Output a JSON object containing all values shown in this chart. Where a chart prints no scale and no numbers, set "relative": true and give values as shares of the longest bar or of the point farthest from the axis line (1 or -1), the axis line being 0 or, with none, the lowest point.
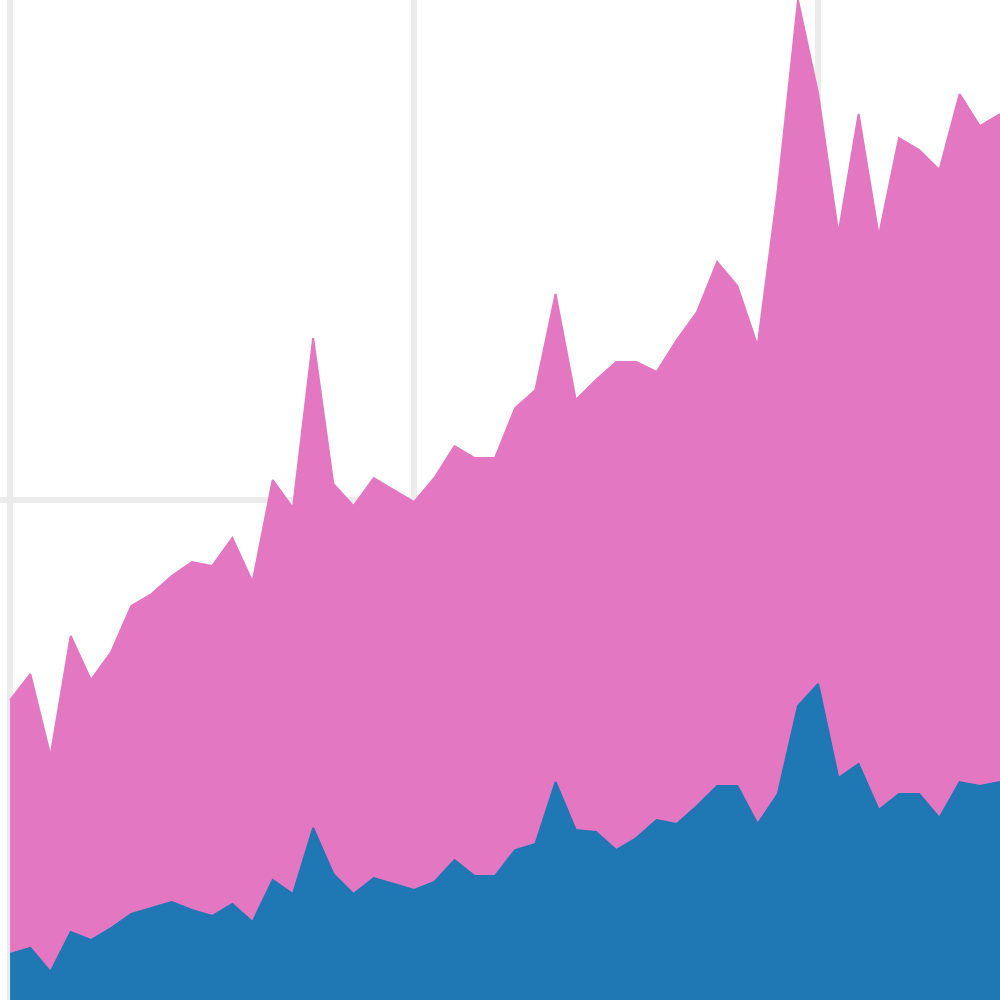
{
  "chart_data": {
    "type": "area",
    "relative": true,
    "stacked": true,
    "grid": true,
    "categories": [
      null,
      null,
      null,
      null,
      null,
      null,
      null,
      null,
      null,
      null,
      null,
      null,
      null,
      null,
      null,
      null,
      null,
      null,
      null,
      null,
      null,
      null,
      null,
      null,
      null,
      null,
      null,
      null,
      null,
      null,
      null,
      null,
      null,
      null,
      null,
      null,
      null,
      null,
      null,
      null,
      null,
      null,
      null,
      null,
      null,
      null,
      null,
      null,
      null,
      null
    ],
    "series": [
      {
        "color": "#1f77b4",
        "values": [
          0.046,
          0.052,
          0.028,
          0.068,
          0.06,
          0.072,
          0.086,
          0.092,
          0.098,
          0.09,
          0.084,
          0.096,
          0.078,
          0.12,
          0.106,
          0.172,
          0.126,
          0.106,
          0.122,
          0.116,
          0.11,
          0.118,
          0.14,
          0.124,
          0.124,
          0.15,
          0.156,
          0.218,
          0.17,
          0.168,
          0.15,
          0.162,
          0.18,
          0.176,
          0.194,
          0.214,
          0.214,
          0.176,
          0.206,
          0.294,
          0.316,
          0.222,
          0.236,
          0.19,
          0.206,
          0.206,
          0.182,
          0.218,
          0.214,
          0.218
        ]
      },
      {
        "color": "#e377c2",
        "values": [
          0.254,
          0.274,
          0.216,
          0.296,
          0.26,
          0.276,
          0.308,
          0.314,
          0.326,
          0.348,
          0.35,
          0.366,
          0.34,
          0.4,
          0.386,
          0.49,
          0.39,
          0.388,
          0.4,
          0.394,
          0.388,
          0.404,
          0.414,
          0.418,
          0.418,
          0.442,
          0.454,
          0.488,
          0.43,
          0.452,
          0.488,
          0.476,
          0.448,
          0.484,
          0.494,
          0.524,
          0.5,
          0.478,
          0.604,
          0.706,
          0.59,
          0.544,
          0.65,
          0.574,
          0.656,
          0.644,
          0.648,
          0.688,
          0.66,
          0.668
        ]
      }
    ]
  }
}
